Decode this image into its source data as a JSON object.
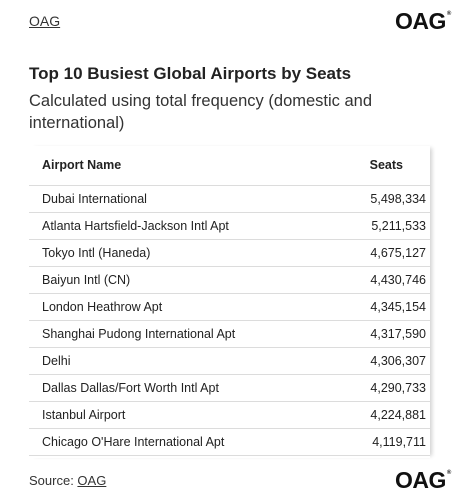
{
  "header": {
    "link_label": "OAG",
    "logo_text": "OAG",
    "logo_mark": "®"
  },
  "chart": {
    "title": "Top 10 Busiest Global Airports by Seats",
    "subtitle": "Calculated using total frequency (domestic and international)"
  },
  "chart_data": {
    "type": "table",
    "title": "Top 10 Busiest Global Airports by Seats",
    "subtitle": "Calculated using total frequency (domestic and international)",
    "columns": [
      "Airport Name",
      "Seats"
    ],
    "rows": [
      {
        "name": "Dubai International",
        "seats": "5,498,334"
      },
      {
        "name": "Atlanta Hartsfield-Jackson Intl Apt",
        "seats": "5,211,533"
      },
      {
        "name": "Tokyo Intl (Haneda)",
        "seats": "4,675,127"
      },
      {
        "name": "Baiyun Intl (CN)",
        "seats": "4,430,746"
      },
      {
        "name": "London Heathrow Apt",
        "seats": "4,345,154"
      },
      {
        "name": "Shanghai Pudong International Apt",
        "seats": "4,317,590"
      },
      {
        "name": "Delhi",
        "seats": "4,306,307"
      },
      {
        "name": "Dallas Dallas/Fort Worth Intl Apt",
        "seats": "4,290,733"
      },
      {
        "name": "Istanbul Airport",
        "seats": "4,224,881"
      },
      {
        "name": "Chicago O'Hare International Apt",
        "seats": "4,119,711"
      }
    ]
  },
  "footer": {
    "source_prefix": "Source: ",
    "source_link": "OAG",
    "logo_text": "OAG",
    "logo_mark": "®"
  }
}
